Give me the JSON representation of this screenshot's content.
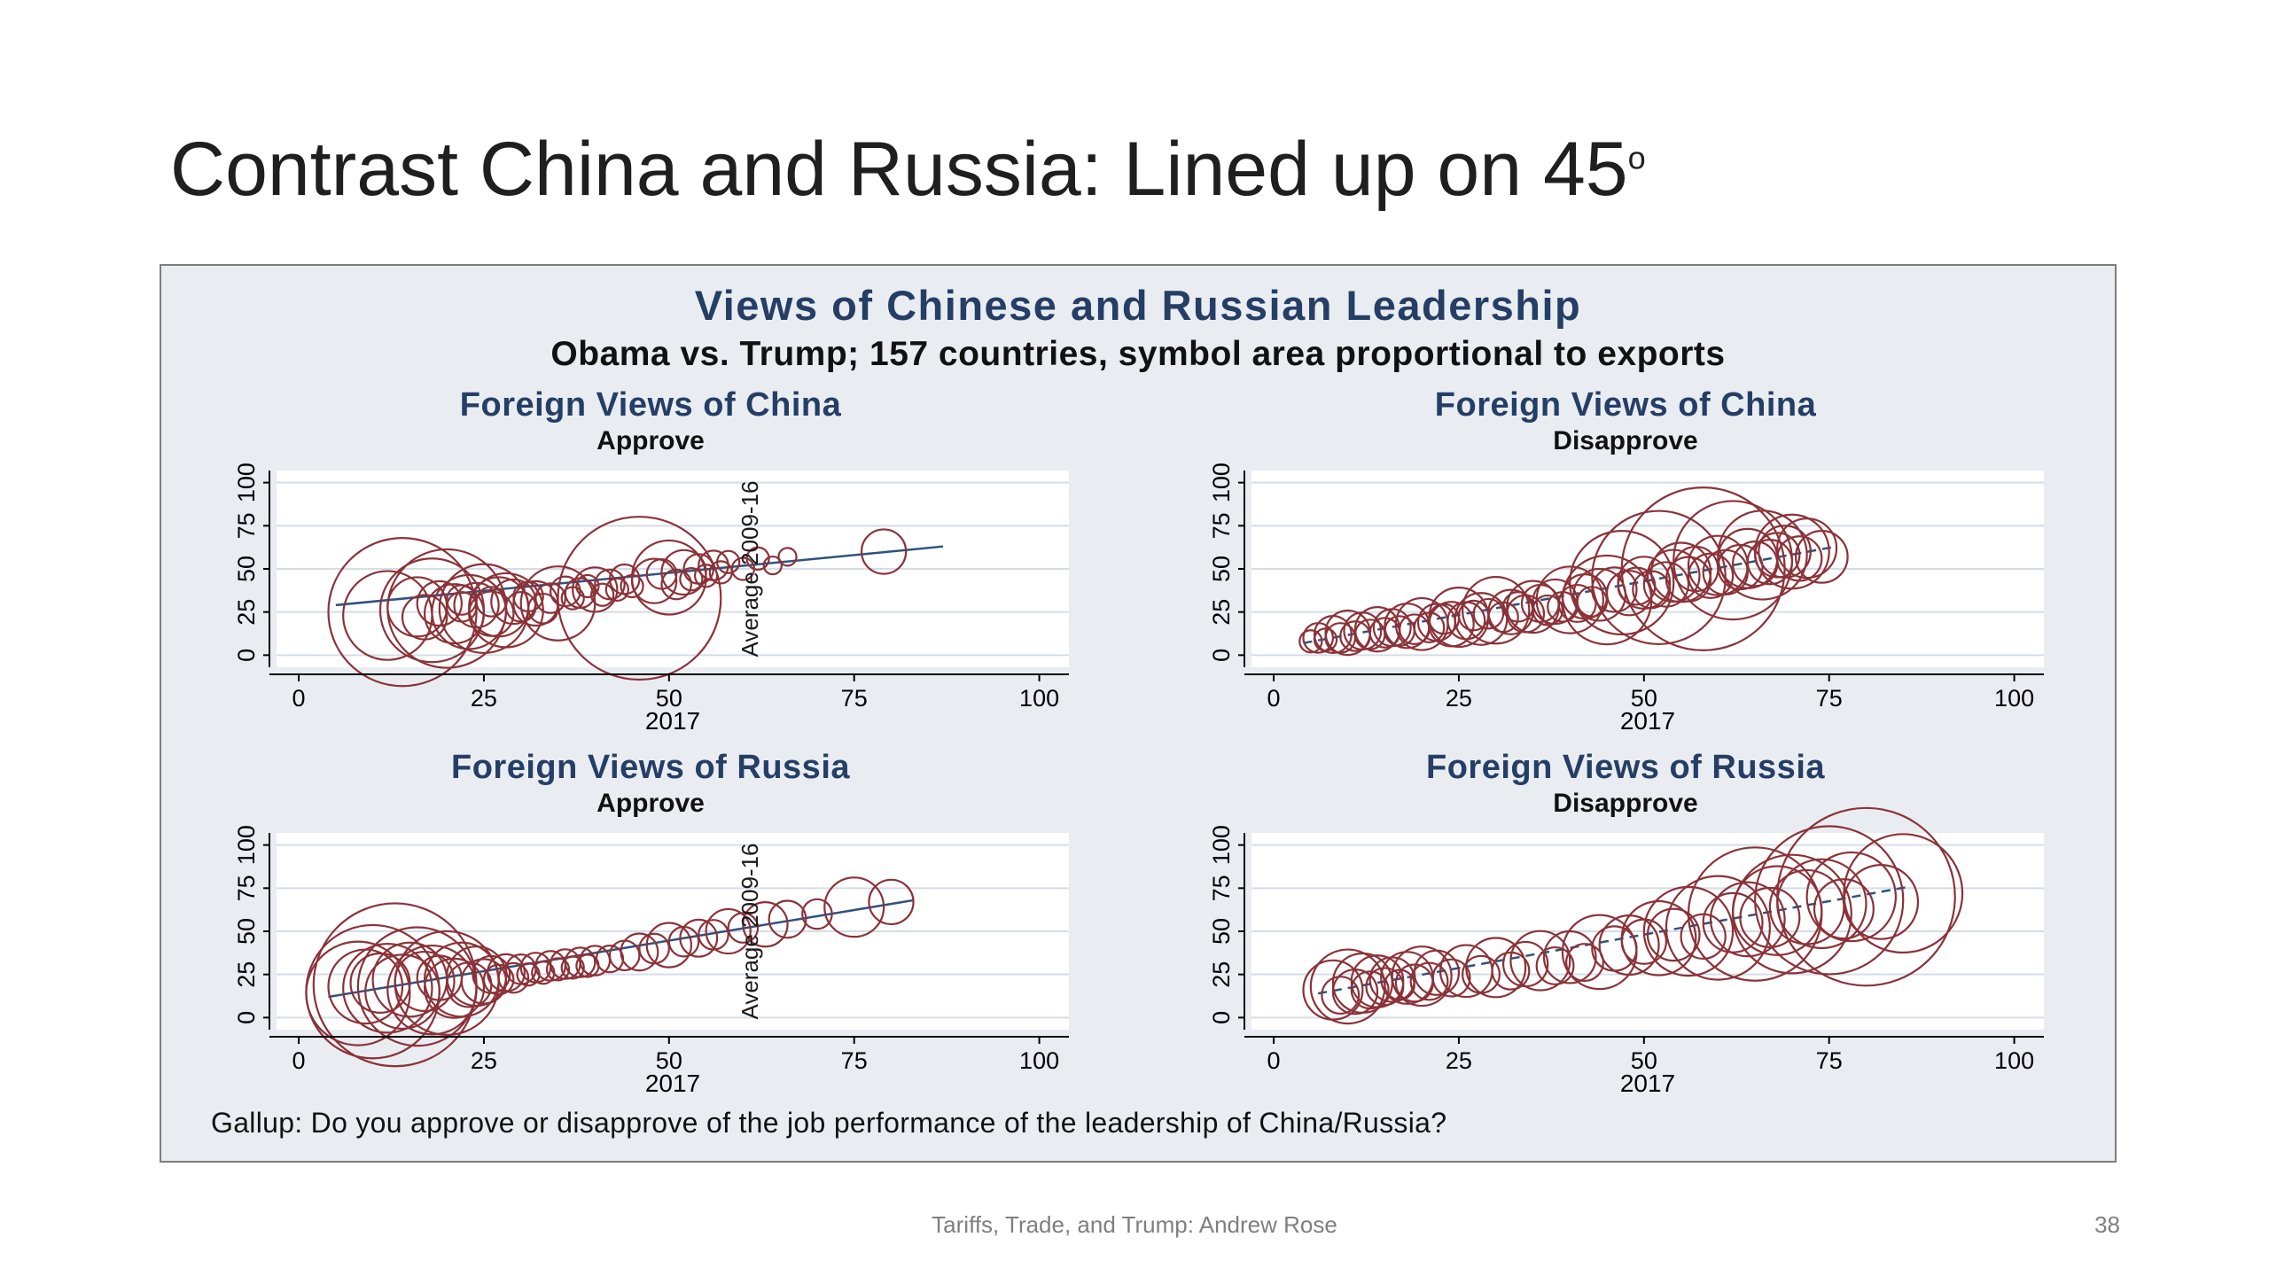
{
  "slide": {
    "title": "Contrast China and Russia: Lined up on 45",
    "title_superscript": "o",
    "footer": "Tariffs, Trade, and Trump: Andrew Rose",
    "page_number": "38"
  },
  "figure": {
    "title": "Views of Chinese and Russian Leadership",
    "subtitle": "Obama vs. Trump; 157 countries, symbol area proportional to exports",
    "note": "Gallup: Do you approve or disapprove of the job performance of the leadership of China/Russia?",
    "colors": {
      "bubble": "#8b3238",
      "trend": "#2f527e",
      "grid": "#d3dde8",
      "axis": "#000000",
      "plot_background": "#ffffff",
      "figure_background": "#e9edf2",
      "title_navy": "#253e66"
    }
  },
  "chart_data": [
    {
      "type": "scatter",
      "title": "Foreign Views of China",
      "subtitle": "Approve",
      "xlabel": "2017",
      "xticks": [
        0,
        25,
        50,
        75,
        100
      ],
      "yticks": [
        0,
        25,
        50,
        75,
        100
      ],
      "xlim": [
        0,
        100
      ],
      "ylim": [
        0,
        100
      ],
      "avg_label": "Average 2009-16",
      "avg_label_x": 62,
      "trend": {
        "x1": 5,
        "y1": 29,
        "x2": 87,
        "y2": 63,
        "dashed": false
      },
      "points": [
        [
          12,
          23,
          6
        ],
        [
          14,
          25,
          10
        ],
        [
          16,
          28,
          4
        ],
        [
          17,
          22,
          3
        ],
        [
          18,
          26,
          7
        ],
        [
          19,
          30,
          3
        ],
        [
          20,
          27,
          8
        ],
        [
          21,
          24,
          4
        ],
        [
          22,
          28,
          2
        ],
        [
          22,
          32,
          2
        ],
        [
          23,
          25,
          5
        ],
        [
          24,
          29,
          3
        ],
        [
          25,
          27,
          6
        ],
        [
          26,
          24,
          3
        ],
        [
          26,
          31,
          2
        ],
        [
          27,
          28,
          4
        ],
        [
          28,
          26,
          5
        ],
        [
          29,
          31,
          3
        ],
        [
          30,
          28,
          2
        ],
        [
          31,
          34,
          2
        ],
        [
          32,
          30,
          3
        ],
        [
          33,
          27,
          2
        ],
        [
          34,
          33,
          2
        ],
        [
          35,
          30,
          5
        ],
        [
          36,
          37,
          2
        ],
        [
          37,
          33,
          1.5
        ],
        [
          38,
          36,
          2
        ],
        [
          39,
          40,
          1.5
        ],
        [
          40,
          38,
          3
        ],
        [
          41,
          35,
          1.5
        ],
        [
          42,
          41,
          2
        ],
        [
          43,
          38,
          1.5
        ],
        [
          44,
          44,
          2
        ],
        [
          45,
          40,
          1.5
        ],
        [
          46,
          33,
          11
        ],
        [
          48,
          43,
          3
        ],
        [
          49,
          47,
          2
        ],
        [
          50,
          45,
          5
        ],
        [
          51,
          41,
          2
        ],
        [
          52,
          48,
          3
        ],
        [
          53,
          44,
          1.5
        ],
        [
          54,
          50,
          2
        ],
        [
          55,
          46,
          1.5
        ],
        [
          56,
          52,
          2
        ],
        [
          57,
          48,
          1.5
        ],
        [
          58,
          54,
          1.5
        ],
        [
          60,
          50,
          1.5
        ],
        [
          62,
          56,
          1.5
        ],
        [
          64,
          52,
          1.2
        ],
        [
          66,
          57,
          1.2
        ],
        [
          79,
          60,
          3
        ]
      ]
    },
    {
      "type": "scatter",
      "title": "Foreign Views of China",
      "subtitle": "Disapprove",
      "xlabel": "2017",
      "xticks": [
        0,
        25,
        50,
        75,
        100
      ],
      "yticks": [
        0,
        25,
        50,
        75,
        100
      ],
      "xlim": [
        0,
        100
      ],
      "ylim": [
        0,
        100
      ],
      "avg_label": null,
      "avg_label_x": null,
      "trend": {
        "x1": 4,
        "y1": 7,
        "x2": 76,
        "y2": 63,
        "dashed": true
      },
      "points": [
        [
          5,
          8,
          1.5
        ],
        [
          6,
          10,
          2
        ],
        [
          7,
          9,
          1.5
        ],
        [
          8,
          12,
          2.5
        ],
        [
          9,
          10,
          2
        ],
        [
          10,
          13,
          3
        ],
        [
          11,
          11,
          2
        ],
        [
          12,
          14,
          2.5
        ],
        [
          13,
          12,
          2
        ],
        [
          14,
          15,
          3
        ],
        [
          15,
          13,
          2
        ],
        [
          16,
          16,
          2.5
        ],
        [
          17,
          14,
          2
        ],
        [
          18,
          17,
          3
        ],
        [
          19,
          15,
          2
        ],
        [
          20,
          18,
          3.5
        ],
        [
          21,
          16,
          2
        ],
        [
          22,
          19,
          2.5
        ],
        [
          23,
          21,
          2
        ],
        [
          24,
          18,
          3
        ],
        [
          25,
          22,
          4
        ],
        [
          26,
          20,
          2.5
        ],
        [
          27,
          23,
          2
        ],
        [
          28,
          21,
          3.5
        ],
        [
          29,
          24,
          2
        ],
        [
          30,
          26,
          4.5
        ],
        [
          31,
          22,
          2
        ],
        [
          32,
          25,
          3
        ],
        [
          33,
          28,
          2
        ],
        [
          34,
          24,
          2.5
        ],
        [
          35,
          28,
          3.5
        ],
        [
          36,
          30,
          2.5
        ],
        [
          37,
          26,
          2
        ],
        [
          38,
          31,
          3
        ],
        [
          39,
          28,
          2
        ],
        [
          40,
          32,
          4.5
        ],
        [
          41,
          30,
          2.5
        ],
        [
          42,
          34,
          3
        ],
        [
          43,
          31,
          2
        ],
        [
          44,
          35,
          3.5
        ],
        [
          45,
          32,
          6
        ],
        [
          46,
          38,
          3
        ],
        [
          47,
          42,
          7
        ],
        [
          48,
          36,
          3
        ],
        [
          49,
          40,
          2.5
        ],
        [
          50,
          42,
          3.5
        ],
        [
          51,
          38,
          2.5
        ],
        [
          52,
          45,
          9
        ],
        [
          53,
          41,
          3
        ],
        [
          54,
          46,
          3.5
        ],
        [
          55,
          48,
          4
        ],
        [
          56,
          44,
          3
        ],
        [
          57,
          50,
          3
        ],
        [
          58,
          50,
          11
        ],
        [
          59,
          46,
          3
        ],
        [
          60,
          52,
          4
        ],
        [
          61,
          48,
          3
        ],
        [
          62,
          55,
          8
        ],
        [
          63,
          51,
          3
        ],
        [
          64,
          56,
          4
        ],
        [
          65,
          53,
          3
        ],
        [
          66,
          58,
          6
        ],
        [
          67,
          54,
          3
        ],
        [
          68,
          58,
          3
        ],
        [
          69,
          60,
          3.5
        ],
        [
          70,
          60,
          5
        ],
        [
          71,
          56,
          3
        ],
        [
          72,
          62,
          4
        ],
        [
          74,
          57,
          3.5
        ]
      ]
    },
    {
      "type": "scatter",
      "title": "Foreign Views of Russia",
      "subtitle": "Approve",
      "xlabel": "2017",
      "xticks": [
        0,
        25,
        50,
        75,
        100
      ],
      "yticks": [
        0,
        25,
        50,
        75,
        100
      ],
      "xlim": [
        0,
        100
      ],
      "ylim": [
        0,
        100
      ],
      "avg_label": "Average 2009-16",
      "avg_label_x": 62,
      "trend": {
        "x1": 4,
        "y1": 12,
        "x2": 83,
        "y2": 68,
        "dashed": false
      },
      "points": [
        [
          8,
          14,
          7
        ],
        [
          9,
          18,
          5
        ],
        [
          10,
          15,
          9
        ],
        [
          11,
          20,
          4
        ],
        [
          12,
          17,
          6
        ],
        [
          13,
          19,
          11
        ],
        [
          14,
          15,
          5
        ],
        [
          15,
          22,
          5
        ],
        [
          16,
          18,
          8
        ],
        [
          17,
          21,
          4
        ],
        [
          18,
          16,
          6
        ],
        [
          19,
          23,
          3
        ],
        [
          20,
          20,
          7
        ],
        [
          21,
          17,
          4
        ],
        [
          22,
          22,
          5
        ],
        [
          23,
          19,
          3
        ],
        [
          24,
          24,
          4
        ],
        [
          25,
          21,
          3
        ],
        [
          26,
          25,
          2.5
        ],
        [
          27,
          22,
          2
        ],
        [
          28,
          26,
          2.5
        ],
        [
          29,
          23,
          2
        ],
        [
          30,
          28,
          2
        ],
        [
          31,
          25,
          1.5
        ],
        [
          32,
          29,
          2
        ],
        [
          33,
          26,
          1.5
        ],
        [
          34,
          30,
          2
        ],
        [
          35,
          28,
          1.5
        ],
        [
          36,
          31,
          2
        ],
        [
          37,
          29,
          1.5
        ],
        [
          38,
          32,
          2
        ],
        [
          39,
          30,
          1.5
        ],
        [
          40,
          33,
          2
        ],
        [
          42,
          34,
          1.8
        ],
        [
          44,
          36,
          2
        ],
        [
          46,
          38,
          2.5
        ],
        [
          48,
          40,
          2
        ],
        [
          50,
          42,
          3
        ],
        [
          52,
          44,
          2
        ],
        [
          54,
          46,
          2.5
        ],
        [
          56,
          48,
          2
        ],
        [
          58,
          50,
          3
        ],
        [
          60,
          52,
          2
        ],
        [
          63,
          54,
          3
        ],
        [
          66,
          57,
          2.5
        ],
        [
          70,
          60,
          2
        ],
        [
          75,
          64,
          4
        ],
        [
          80,
          67,
          3
        ]
      ]
    },
    {
      "type": "scatter",
      "title": "Foreign Views of Russia",
      "subtitle": "Disapprove",
      "xlabel": "2017",
      "xticks": [
        0,
        25,
        50,
        75,
        100
      ],
      "yticks": [
        0,
        25,
        50,
        75,
        100
      ],
      "xlim": [
        0,
        100
      ],
      "ylim": [
        0,
        100
      ],
      "avg_label": null,
      "avg_label_x": null,
      "trend": {
        "x1": 6,
        "y1": 14,
        "x2": 86,
        "y2": 76,
        "dashed": true
      },
      "points": [
        [
          8,
          16,
          4
        ],
        [
          9,
          13,
          2.5
        ],
        [
          10,
          18,
          5
        ],
        [
          11,
          15,
          3
        ],
        [
          12,
          20,
          4
        ],
        [
          13,
          16,
          2.5
        ],
        [
          14,
          21,
          3.5
        ],
        [
          15,
          18,
          2.5
        ],
        [
          16,
          22,
          3
        ],
        [
          17,
          19,
          2
        ],
        [
          18,
          23,
          3.5
        ],
        [
          19,
          20,
          2.5
        ],
        [
          20,
          24,
          4
        ],
        [
          21,
          21,
          2.5
        ],
        [
          22,
          26,
          3
        ],
        [
          24,
          23,
          2.5
        ],
        [
          26,
          27,
          3.5
        ],
        [
          28,
          25,
          2.5
        ],
        [
          30,
          29,
          4
        ],
        [
          32,
          27,
          2.5
        ],
        [
          34,
          31,
          3
        ],
        [
          36,
          33,
          4
        ],
        [
          38,
          30,
          2.5
        ],
        [
          40,
          35,
          3.5
        ],
        [
          42,
          32,
          2.5
        ],
        [
          44,
          38,
          5
        ],
        [
          46,
          40,
          3
        ],
        [
          48,
          42,
          4
        ],
        [
          50,
          44,
          3
        ],
        [
          52,
          46,
          5
        ],
        [
          54,
          48,
          3.5
        ],
        [
          56,
          50,
          6
        ],
        [
          58,
          47,
          3
        ],
        [
          60,
          52,
          7
        ],
        [
          62,
          55,
          4
        ],
        [
          64,
          57,
          5
        ],
        [
          65,
          60,
          9
        ],
        [
          67,
          58,
          4
        ],
        [
          68,
          62,
          6
        ],
        [
          70,
          60,
          8
        ],
        [
          72,
          64,
          5
        ],
        [
          74,
          66,
          6
        ],
        [
          75,
          68,
          10
        ],
        [
          77,
          63,
          4
        ],
        [
          78,
          70,
          6
        ],
        [
          80,
          70,
          12
        ],
        [
          82,
          67,
          5
        ],
        [
          85,
          72,
          8
        ]
      ]
    }
  ]
}
